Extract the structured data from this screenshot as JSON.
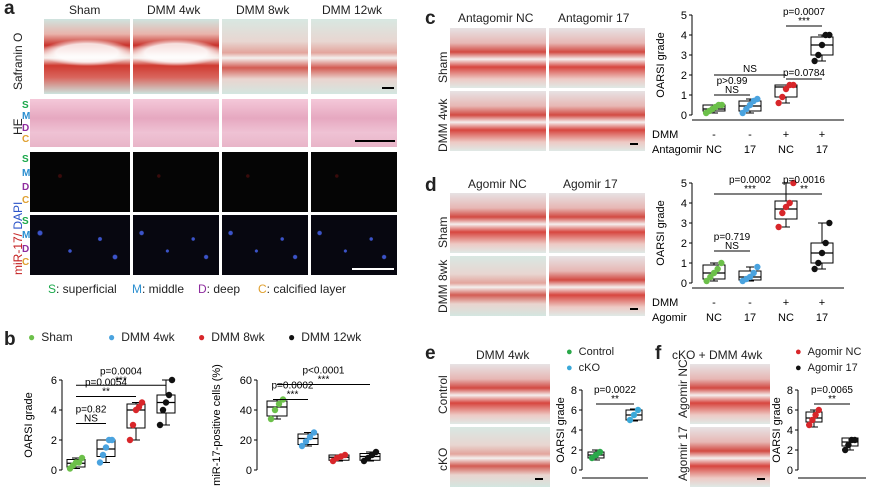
{
  "panel_a": {
    "label": "a",
    "columns": [
      "Sham",
      "DMM 4wk",
      "DMM 8wk",
      "DMM 12wk"
    ],
    "row_labels": {
      "safranin": "Safranin O",
      "he": "HE",
      "mir": "miR-17/",
      "dapi": " DAPI"
    },
    "zone_letters": [
      "S",
      "M",
      "D",
      "C"
    ],
    "zone_legend": [
      {
        "letter": "S",
        "text": ": superficial",
        "color": "#1aa84a"
      },
      {
        "letter": "M",
        "text": ": middle",
        "color": "#2b8fd0"
      },
      {
        "letter": "D",
        "text": ": deep",
        "color": "#8e2c9e"
      },
      {
        "letter": "C",
        "text": ": calcified layer",
        "color": "#e0a030"
      }
    ]
  },
  "panel_b": {
    "label": "b",
    "legend": [
      {
        "name": "Sham",
        "color": "#6cc04a"
      },
      {
        "name": "DMM 4wk",
        "color": "#4aa3df"
      },
      {
        "name": "DMM 8wk",
        "color": "#d8262a"
      },
      {
        "name": "DMM 12wk",
        "color": "#111111"
      }
    ]
  },
  "panel_c": {
    "label": "c",
    "columns": [
      "Antagomir NC",
      "Antagomir 17"
    ],
    "rows": [
      "Sham",
      "DMM 4wk"
    ],
    "table": {
      "rows": [
        "DMM",
        "Antagomir"
      ],
      "values": [
        [
          "-",
          "-",
          "+",
          "+"
        ],
        [
          "NC",
          "17",
          "NC",
          "17"
        ]
      ]
    }
  },
  "panel_d": {
    "label": "d",
    "columns": [
      "Agomir NC",
      "Agomir 17"
    ],
    "rows": [
      "Sham",
      "DMM 8wk"
    ],
    "table": {
      "rows": [
        "DMM",
        "Agomir"
      ],
      "values": [
        [
          "-",
          "-",
          "+",
          "+"
        ],
        [
          "NC",
          "17",
          "NC",
          "17"
        ]
      ]
    }
  },
  "panel_e": {
    "label": "e",
    "column": "DMM 4wk",
    "rows": [
      "Control",
      "cKO"
    ],
    "legend": [
      {
        "name": "Control",
        "color": "#2aa84a"
      },
      {
        "name": "cKO",
        "color": "#3aa8d8"
      }
    ]
  },
  "panel_f": {
    "label": "f",
    "column": "cKO + DMM 4wk",
    "rows": [
      "Agomir NC",
      "Agomir 17"
    ],
    "legend": [
      {
        "name": "Agomir NC",
        "color": "#d8262a"
      },
      {
        "name": "Agomir 17",
        "color": "#111111"
      }
    ]
  },
  "chart_data": [
    {
      "id": "b1",
      "type": "box",
      "ylabel": "OARSI grade",
      "ylim": [
        0,
        6
      ],
      "yticks": [
        0,
        2,
        4,
        6
      ],
      "groups": [
        {
          "color": "#6cc04a",
          "points": [
            0.1,
            0.3,
            0.5,
            0.5,
            0.8
          ],
          "q": [
            0.2,
            0.45,
            0.7
          ],
          "wh": [
            0.1,
            0.8
          ]
        },
        {
          "color": "#4aa3df",
          "points": [
            0.5,
            1.0,
            1.5,
            2.0,
            2.0
          ],
          "q": [
            0.9,
            1.4,
            2.0
          ],
          "wh": [
            0.5,
            2.0
          ]
        },
        {
          "color": "#d8262a",
          "points": [
            2.0,
            3.0,
            4.0,
            4.2,
            4.5
          ],
          "q": [
            2.8,
            4.0,
            4.4
          ],
          "wh": [
            2.0,
            4.5
          ]
        },
        {
          "color": "#111111",
          "points": [
            3.0,
            4.0,
            4.5,
            5.0,
            6.0
          ],
          "q": [
            3.8,
            4.5,
            5.0
          ],
          "wh": [
            3.0,
            6.0
          ]
        }
      ],
      "annotations": [
        {
          "text": "p=0.0004",
          "y": 5.65,
          "from": 0,
          "to": 3,
          "stars": "***"
        },
        {
          "text": "p=0.0054",
          "y": 4.9,
          "from": 0,
          "to": 2,
          "stars": "**"
        },
        {
          "text": "p=0.82",
          "y": 3.1,
          "from": 0,
          "to": 1,
          "stars": "NS"
        }
      ]
    },
    {
      "id": "b2",
      "type": "box",
      "ylabel": "miR-17-positive cells (%)",
      "ylim": [
        0,
        60
      ],
      "yticks": [
        0,
        20,
        40,
        60
      ],
      "groups": [
        {
          "color": "#6cc04a",
          "points": [
            34,
            40,
            44,
            47
          ],
          "q": [
            36,
            42,
            46
          ],
          "wh": [
            34,
            47
          ]
        },
        {
          "color": "#4aa3df",
          "points": [
            16,
            19,
            22,
            25
          ],
          "q": [
            17,
            21,
            24
          ],
          "wh": [
            16,
            25
          ]
        },
        {
          "color": "#d8262a",
          "points": [
            6,
            8,
            9,
            10
          ],
          "q": [
            6.5,
            8.5,
            10
          ],
          "wh": [
            6,
            10
          ]
        },
        {
          "color": "#111111",
          "points": [
            6,
            8,
            10,
            12
          ],
          "q": [
            6.5,
            9,
            11
          ],
          "wh": [
            6,
            12
          ]
        }
      ],
      "annotations": [
        {
          "text": "p<0.0001",
          "y": 57,
          "from": 0,
          "to": 3,
          "stars": "***"
        },
        {
          "text": "p=0.0002",
          "y": 47,
          "from": 0,
          "to": 1,
          "stars": "***"
        }
      ]
    },
    {
      "id": "c",
      "type": "box",
      "ylabel": "OARSI grade",
      "ylim": [
        0,
        5
      ],
      "yticks": [
        0,
        1,
        2,
        3,
        4,
        5
      ],
      "groups": [
        {
          "color": "#6cc04a",
          "points": [
            0.1,
            0.2,
            0.3,
            0.4,
            0.5,
            0.5
          ],
          "q": [
            0.2,
            0.3,
            0.5
          ],
          "wh": [
            0.1,
            0.5
          ]
        },
        {
          "color": "#4aa3df",
          "points": [
            0.1,
            0.3,
            0.5,
            0.7,
            0.8
          ],
          "q": [
            0.2,
            0.45,
            0.7
          ],
          "wh": [
            0.1,
            0.8
          ]
        },
        {
          "color": "#d8262a",
          "points": [
            0.6,
            0.9,
            1.3,
            1.5,
            1.5
          ],
          "q": [
            0.9,
            1.4,
            1.5
          ],
          "wh": [
            0.6,
            1.5
          ]
        },
        {
          "color": "#111111",
          "points": [
            2.7,
            3.0,
            3.5,
            4.0,
            4.0
          ],
          "q": [
            3.0,
            3.5,
            3.9
          ],
          "wh": [
            2.7,
            4.0
          ]
        }
      ],
      "annotations": [
        {
          "text": "p=0.0007",
          "y": 4.45,
          "from": 2,
          "to": 3,
          "stars": "***"
        },
        {
          "text": "NS",
          "y": 2.0,
          "from": 0,
          "to": 2,
          "stars": ""
        },
        {
          "text": "p=0.0784",
          "y": 1.8,
          "from": 2,
          "to": 3,
          "stars": ""
        },
        {
          "text": "p>0.99",
          "y": 1.0,
          "from": 0,
          "to": 1,
          "stars": "NS"
        }
      ]
    },
    {
      "id": "d",
      "type": "box",
      "ylabel": "OARSI grade",
      "ylim": [
        0,
        5
      ],
      "yticks": [
        0,
        1,
        2,
        3,
        4,
        5
      ],
      "groups": [
        {
          "color": "#6cc04a",
          "points": [
            0.1,
            0.3,
            0.5,
            0.7,
            1.0
          ],
          "q": [
            0.2,
            0.5,
            0.9
          ],
          "wh": [
            0.1,
            1.0
          ]
        },
        {
          "color": "#4aa3df",
          "points": [
            0.1,
            0.2,
            0.3,
            0.5,
            0.8
          ],
          "q": [
            0.15,
            0.3,
            0.6
          ],
          "wh": [
            0.1,
            0.8
          ]
        },
        {
          "color": "#d8262a",
          "points": [
            2.8,
            3.5,
            3.8,
            4.0,
            5.0
          ],
          "q": [
            3.2,
            3.7,
            4.1
          ],
          "wh": [
            2.8,
            5.0
          ]
        },
        {
          "color": "#111111",
          "points": [
            0.7,
            1.0,
            1.5,
            2.0,
            3.0
          ],
          "q": [
            1.0,
            1.5,
            2.0
          ],
          "wh": [
            0.7,
            3.0
          ]
        }
      ],
      "annotations": [
        {
          "text": "p=0.0002",
          "y": 4.45,
          "from": 0,
          "to": 2,
          "stars": "***"
        },
        {
          "text": "p=0.0016",
          "y": 4.45,
          "from": 2,
          "to": 3,
          "stars": "**"
        },
        {
          "text": "p=0.719",
          "y": 1.6,
          "from": 0,
          "to": 1,
          "stars": "NS"
        }
      ]
    },
    {
      "id": "e",
      "type": "box",
      "ylabel": "OARSI grade",
      "ylim": [
        0,
        8
      ],
      "yticks": [
        0,
        2,
        4,
        6,
        8
      ],
      "groups": [
        {
          "color": "#2aa84a",
          "points": [
            1.2,
            1.5,
            1.8
          ],
          "q": [
            1.2,
            1.5,
            1.8
          ],
          "wh": [
            1.0,
            2.0
          ]
        },
        {
          "color": "#3aa8d8",
          "points": [
            5.0,
            5.5,
            6.0
          ],
          "q": [
            5.0,
            5.5,
            6.0
          ],
          "wh": [
            4.9,
            6.1
          ]
        }
      ],
      "annotations": [
        {
          "text": "p=0.0022",
          "y": 6.6,
          "from": 0,
          "to": 1,
          "stars": "**"
        }
      ]
    },
    {
      "id": "f",
      "type": "box",
      "ylabel": "OARSI grade",
      "ylim": [
        0,
        8
      ],
      "yticks": [
        0,
        2,
        4,
        6,
        8
      ],
      "groups": [
        {
          "color": "#d8262a",
          "points": [
            4.5,
            5.0,
            5.5,
            6.0
          ],
          "q": [
            4.8,
            5.2,
            5.8
          ],
          "wh": [
            4.3,
            6.0
          ]
        },
        {
          "color": "#111111",
          "points": [
            2.0,
            2.5,
            3.0,
            3.0
          ],
          "q": [
            2.4,
            2.8,
            3.2
          ],
          "wh": [
            2.0,
            3.2
          ]
        }
      ],
      "annotations": [
        {
          "text": "p=0.0065",
          "y": 6.6,
          "from": 0,
          "to": 1,
          "stars": "**"
        }
      ]
    }
  ]
}
